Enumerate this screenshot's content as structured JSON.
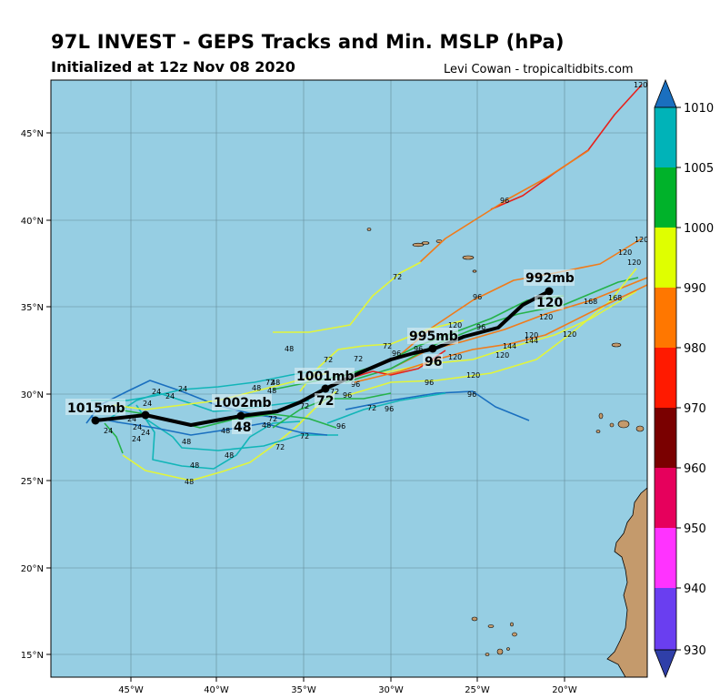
{
  "header": {
    "title": "97L INVEST - GEPS Tracks and Min. MSLP (hPa)",
    "subtitle": "Initialized at 12z Nov 08 2020",
    "credit": "Levi Cowan - tropicaltidbits.com"
  },
  "map": {
    "ocean_color": "#96cee3",
    "land_color": "#c49a6c",
    "lon_ticks": [
      "45°W",
      "40°W",
      "35°W",
      "30°W",
      "25°W",
      "20°W"
    ],
    "lat_ticks": [
      "45°N",
      "40°N",
      "35°N",
      "30°N",
      "25°N",
      "20°N",
      "15°N"
    ]
  },
  "colorbar": {
    "ticks": [
      "1010",
      "1005",
      "1000",
      "990",
      "980",
      "970",
      "960",
      "950",
      "940",
      "930"
    ],
    "colors": [
      "#2f3fa8",
      "#6a3ef0",
      "#ff33ff",
      "#e6005c",
      "#7a0000",
      "#ff1a00",
      "#ff7700",
      "#dfff00",
      "#00b22a",
      "#00b3b8",
      "#1a6fbf"
    ]
  },
  "mean_track": {
    "labels": [
      {
        "pressure": "1015mb",
        "hour": ""
      },
      {
        "pressure": "1002mb",
        "hour": "48"
      },
      {
        "pressure": "1001mb",
        "hour": "72"
      },
      {
        "pressure": "995mb",
        "hour": "96"
      },
      {
        "pressure": "992mb",
        "hour": "120"
      }
    ]
  },
  "member_hour_labels": [
    "24",
    "48",
    "72",
    "96",
    "120",
    "144",
    "168"
  ]
}
